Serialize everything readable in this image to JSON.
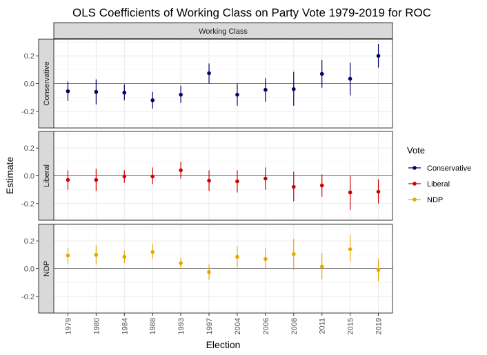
{
  "chart_data": {
    "type": "scatter",
    "title": "OLS Coefficients of Working Class on Party Vote 1979-2019 for ROC",
    "facet_label": "Working Class",
    "xlabel": "Election",
    "ylabel": "Estimate",
    "categories": [
      "1979",
      "1980",
      "1984",
      "1988",
      "1993",
      "1997",
      "2004",
      "2006",
      "2008",
      "2011",
      "2015",
      "2019"
    ],
    "ylim": [
      -0.32,
      0.32
    ],
    "yticks": [
      0.2,
      0.0,
      -0.2
    ],
    "ytick_labels": [
      "0.2",
      "0.0",
      "-0.2"
    ],
    "legend": {
      "title": "Vote",
      "position": "right"
    },
    "grid": true,
    "series": [
      {
        "name": "Conservative",
        "color": "#000066",
        "values": [
          -0.055,
          -0.06,
          -0.065,
          -0.12,
          -0.08,
          0.075,
          -0.08,
          -0.045,
          -0.04,
          0.07,
          0.035,
          0.2
        ],
        "lower": [
          -0.125,
          -0.15,
          -0.12,
          -0.18,
          -0.14,
          0.0,
          -0.16,
          -0.13,
          -0.16,
          -0.03,
          -0.085,
          0.115
        ],
        "upper": [
          0.015,
          0.03,
          -0.005,
          -0.06,
          -0.015,
          0.145,
          0.0,
          0.04,
          0.085,
          0.17,
          0.15,
          0.285
        ]
      },
      {
        "name": "Liberal",
        "color": "#cc0000",
        "values": [
          -0.03,
          -0.03,
          -0.005,
          -0.005,
          0.04,
          -0.035,
          -0.04,
          -0.02,
          -0.08,
          -0.07,
          -0.12,
          -0.115
        ],
        "lower": [
          -0.1,
          -0.11,
          -0.05,
          -0.06,
          -0.02,
          -0.11,
          -0.12,
          -0.1,
          -0.185,
          -0.15,
          -0.245,
          -0.2
        ],
        "upper": [
          0.04,
          0.05,
          0.04,
          0.06,
          0.1,
          0.04,
          0.04,
          0.06,
          0.03,
          0.01,
          0.0,
          -0.025
        ]
      },
      {
        "name": "NDP",
        "color": "#e6a800",
        "values": [
          0.095,
          0.1,
          0.085,
          0.12,
          0.04,
          -0.025,
          0.085,
          0.07,
          0.105,
          0.015,
          0.14,
          -0.01
        ],
        "lower": [
          0.035,
          0.03,
          0.04,
          0.07,
          0.0,
          -0.08,
          0.01,
          -0.005,
          -0.01,
          -0.075,
          0.05,
          -0.09
        ],
        "upper": [
          0.15,
          0.17,
          0.13,
          0.18,
          0.08,
          0.03,
          0.16,
          0.145,
          0.215,
          0.11,
          0.24,
          0.07
        ]
      }
    ]
  }
}
